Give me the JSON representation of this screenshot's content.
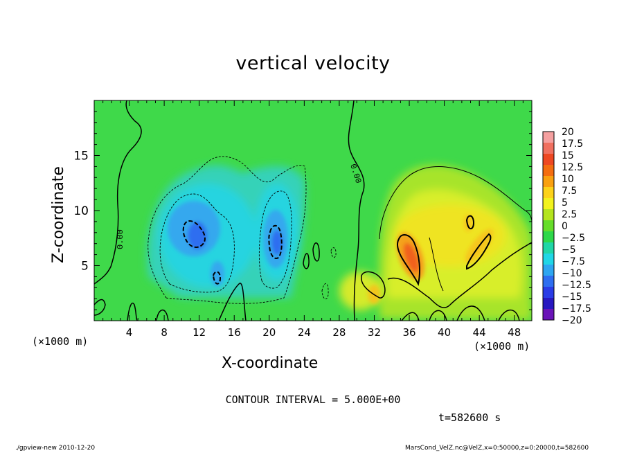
{
  "chart_data": {
    "type": "heatmap",
    "title": "vertical velocity",
    "xlabel": "X-coordinate",
    "ylabel": "Z-coordinate",
    "x_units": "(×1000 m)",
    "xlim": [
      0,
      50
    ],
    "ylim": [
      0,
      20
    ],
    "x_ticks": [
      4,
      8,
      12,
      16,
      20,
      24,
      28,
      32,
      36,
      40,
      44,
      48
    ],
    "y_ticks": [
      5,
      10,
      15
    ],
    "colorbar": {
      "labels": [
        "20",
        "17.5",
        "15",
        "12.5",
        "10",
        "7.5",
        "5",
        "2.5",
        "0",
        "−2.5",
        "−5",
        "−7.5",
        "−10",
        "−12.5",
        "−15",
        "−17.5",
        "−20"
      ],
      "colors": [
        "#f5a0a0",
        "#f07060",
        "#ee4822",
        "#f46d10",
        "#f9a010",
        "#fcd21a",
        "#f2f21e",
        "#b4e41e",
        "#66dd2a",
        "#2ed84a",
        "#20d6a6",
        "#20d6e6",
        "#2ea6f0",
        "#2e6ef0",
        "#2a3ce6",
        "#2818c0",
        "#6a14b8"
      ]
    },
    "contour_label": "0.00",
    "contour_interval": "CONTOUR INTERVAL = 5.000E+00",
    "features": [
      {
        "sign": "negative",
        "x": 12,
        "z": 7.5,
        "value": -11
      },
      {
        "sign": "negative",
        "x": 21,
        "z": 7,
        "value": -10
      },
      {
        "sign": "positive",
        "x": 36,
        "z": 6,
        "value": 12
      },
      {
        "sign": "positive",
        "x": 43,
        "z": 8,
        "value": 9
      },
      {
        "sign": "positive",
        "x": 32,
        "z": 2.5,
        "value": 5
      }
    ]
  },
  "figure": {
    "time_label": "t=582600 s",
    "footer_left": "./gpview-new   2010-12-20",
    "footer_right": "MarsCond_VelZ.nc@VelZ,x=0:50000,z=0:20000,t=582600"
  }
}
